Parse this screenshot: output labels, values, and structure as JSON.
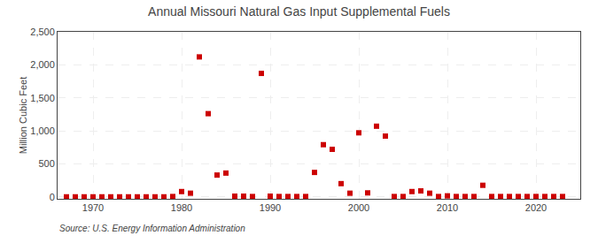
{
  "chart_data": {
    "type": "scatter",
    "title": "Annual Missouri Natural Gas Input Supplemental Fuels",
    "y_label": "Million Cubic Feet",
    "annotations": [
      "Source: U.S. Energy Information Administration"
    ],
    "color": "#cc0000",
    "marker": "square",
    "grid": true,
    "x": [
      1967,
      1968,
      1969,
      1970,
      1971,
      1972,
      1973,
      1974,
      1975,
      1976,
      1977,
      1978,
      1979,
      1980,
      1981,
      1982,
      1983,
      1984,
      1985,
      1986,
      1987,
      1988,
      1989,
      1990,
      1991,
      1992,
      1993,
      1994,
      1995,
      1996,
      1997,
      1998,
      1999,
      2000,
      2001,
      2002,
      2003,
      2004,
      2005,
      2006,
      2007,
      2008,
      2009,
      2010,
      2011,
      2012,
      2013,
      2014,
      2015,
      2016,
      2017,
      2018,
      2019,
      2020,
      2021,
      2022,
      2023
    ],
    "values": [
      0,
      0,
      0,
      0,
      0,
      0,
      0,
      0,
      0,
      0,
      0,
      0,
      5,
      80,
      55,
      2120,
      1260,
      330,
      360,
      10,
      10,
      5,
      1870,
      10,
      5,
      5,
      5,
      5,
      370,
      790,
      720,
      200,
      55,
      970,
      60,
      1070,
      920,
      5,
      5,
      80,
      90,
      55,
      5,
      15,
      5,
      5,
      5,
      175,
      5,
      5,
      5,
      5,
      5,
      5,
      5,
      5,
      5
    ],
    "xlim": [
      1966,
      2025
    ],
    "xticks": [
      1970,
      1980,
      1990,
      2000,
      2010,
      2020
    ],
    "ylim": [
      -30,
      2500
    ],
    "yticks": [
      0,
      500,
      {
        "value": 1000,
        "label": "1,000"
      },
      {
        "value": 1500,
        "label": "1,500"
      },
      {
        "value": 2000,
        "label": "2,000"
      },
      {
        "value": 2500,
        "label": "2,500"
      }
    ]
  }
}
